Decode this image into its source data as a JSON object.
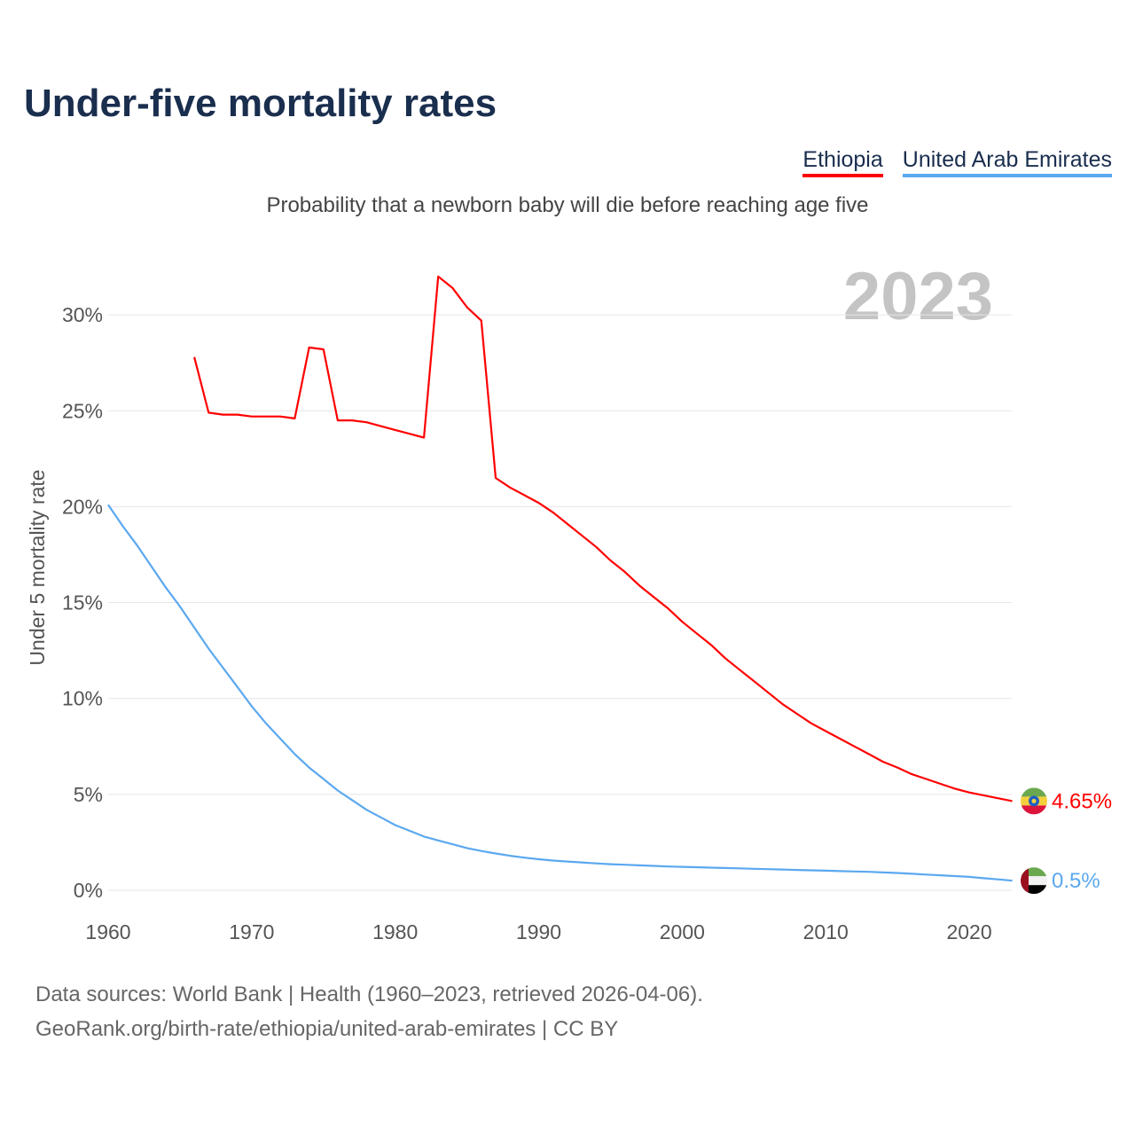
{
  "title": "Under-five mortality rates",
  "subtitle": "Probability that a newborn baby will die before reaching age five",
  "year_label": "2023",
  "footer": {
    "line1": "Data sources: World Bank | Health (1960–2023, retrieved 2026-04-06).",
    "line2": "GeoRank.org/birth-rate/ethiopia/united-arab-emirates | CC BY"
  },
  "chart_data": {
    "type": "line",
    "title": "Under-five mortality rates",
    "ylabel": "Under 5 mortality rate",
    "xlabel": "",
    "xlim": [
      1960,
      2023
    ],
    "ylim": [
      0,
      32
    ],
    "x_ticks": [
      "1960",
      "1970",
      "1980",
      "1990",
      "2000",
      "2010",
      "2020"
    ],
    "y_ticks": [
      "0%",
      "5%",
      "10%",
      "15%",
      "20%",
      "25%",
      "30%"
    ],
    "grid": true,
    "legend_position": "top-right",
    "series": [
      {
        "name": "Ethiopia",
        "color": "#ff0000",
        "end_label": "4.65%",
        "flag": "ethiopia-flag-icon",
        "start_year": 1966,
        "values": [
          27.8,
          24.9,
          24.8,
          24.8,
          24.7,
          24.7,
          24.7,
          24.6,
          28.3,
          28.2,
          24.5,
          24.5,
          24.4,
          24.2,
          24.0,
          23.8,
          23.6,
          32.0,
          31.4,
          30.4,
          29.7,
          21.5,
          21.0,
          20.6,
          20.2,
          19.7,
          19.1,
          18.5,
          17.9,
          17.2,
          16.6,
          15.9,
          15.3,
          14.7,
          14.0,
          13.4,
          12.8,
          12.1,
          11.5,
          10.9,
          10.3,
          9.7,
          9.2,
          8.7,
          8.3,
          7.9,
          7.5,
          7.1,
          6.7,
          6.4,
          6.05,
          5.8,
          5.55,
          5.3,
          5.1,
          4.95,
          4.8,
          4.65
        ]
      },
      {
        "name": "United Arab Emirates",
        "color": "#5ba8f0",
        "end_label": "0.5%",
        "flag": "uae-flag-icon",
        "start_year": 1960,
        "values": [
          20.1,
          19.0,
          18.0,
          16.9,
          15.8,
          14.8,
          13.7,
          12.6,
          11.6,
          10.6,
          9.6,
          8.7,
          7.9,
          7.1,
          6.4,
          5.8,
          5.2,
          4.7,
          4.2,
          3.8,
          3.4,
          3.1,
          2.8,
          2.6,
          2.4,
          2.2,
          2.05,
          1.92,
          1.8,
          1.7,
          1.62,
          1.55,
          1.5,
          1.45,
          1.4,
          1.36,
          1.33,
          1.3,
          1.27,
          1.24,
          1.22,
          1.2,
          1.18,
          1.16,
          1.14,
          1.12,
          1.1,
          1.08,
          1.06,
          1.04,
          1.02,
          1.0,
          0.98,
          0.96,
          0.93,
          0.9,
          0.86,
          0.82,
          0.78,
          0.74,
          0.7,
          0.63,
          0.57,
          0.5
        ]
      }
    ]
  }
}
